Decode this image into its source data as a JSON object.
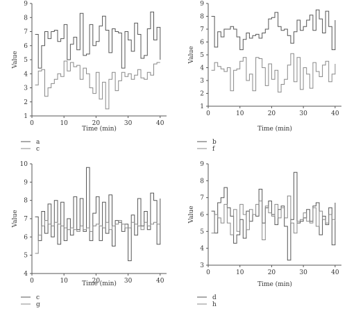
{
  "chart_data": [
    {
      "type": "line",
      "xlabel": "Time (min)",
      "ylabel": "Value",
      "xlim": [
        0,
        42
      ],
      "ylim": [
        1,
        9
      ],
      "xticks": [
        "0",
        "10",
        "20",
        "30",
        "40"
      ],
      "yticks": [
        "1",
        "2",
        "3",
        "4",
        "5",
        "6",
        "7",
        "8",
        "9"
      ],
      "series": [
        {
          "name": "a",
          "color": "#555555",
          "x": [
            1,
            2,
            3,
            4,
            5,
            6,
            7,
            8,
            9,
            10,
            11,
            12,
            13,
            14,
            15,
            16,
            17,
            18,
            19,
            20,
            21,
            22,
            23,
            24,
            25,
            26,
            27,
            28,
            29,
            30,
            31,
            32,
            33,
            34,
            35,
            36,
            37,
            38,
            39,
            40
          ],
          "values": [
            6.8,
            4.4,
            6.0,
            7.0,
            6.5,
            7.0,
            7.1,
            6.3,
            6.5,
            7.5,
            5.0,
            6.1,
            6.6,
            5.7,
            8.3,
            5.3,
            5.4,
            7.5,
            6.0,
            6.3,
            7.4,
            8.1,
            7.1,
            5.5,
            7.2,
            7.0,
            6.9,
            4.4,
            7.0,
            6.4,
            5.6,
            7.6,
            6.8,
            5.1,
            5.3,
            7.2,
            8.4,
            6.4,
            7.3,
            5.0
          ]
        },
        {
          "name": "c",
          "color": "#888888",
          "x": [
            1,
            2,
            3,
            4,
            5,
            6,
            7,
            8,
            9,
            10,
            11,
            12,
            13,
            14,
            15,
            16,
            17,
            18,
            19,
            20,
            21,
            22,
            23,
            24,
            25,
            26,
            27,
            28,
            29,
            30,
            31,
            32,
            33,
            34,
            35,
            36,
            37,
            38,
            39,
            40
          ],
          "values": [
            3.2,
            4.2,
            4.3,
            2.4,
            3.0,
            3.3,
            3.6,
            4.0,
            3.8,
            4.9,
            4.2,
            4.8,
            4.5,
            4.6,
            3.6,
            4.4,
            4.0,
            3.0,
            2.6,
            4.1,
            2.2,
            3.4,
            1.5,
            3.6,
            4.1,
            2.8,
            3.5,
            4.1,
            3.8,
            4.0,
            3.6,
            3.9,
            4.3,
            3.7,
            3.6,
            4.1,
            3.9,
            4.7,
            4.8,
            4.8
          ]
        }
      ]
    },
    {
      "type": "line",
      "xlabel": "Time (min)",
      "ylabel": "Value",
      "xlim": [
        0,
        42
      ],
      "ylim": [
        1,
        9
      ],
      "xticks": [
        "0",
        "10",
        "20",
        "30",
        "40"
      ],
      "yticks": [
        "1",
        "2",
        "3",
        "4",
        "5",
        "6",
        "7",
        "8",
        "9"
      ],
      "series": [
        {
          "name": "b",
          "color": "#555555",
          "x": [
            1,
            2,
            3,
            4,
            5,
            6,
            7,
            8,
            9,
            10,
            11,
            12,
            13,
            14,
            15,
            16,
            17,
            18,
            19,
            20,
            21,
            22,
            23,
            24,
            25,
            26,
            27,
            28,
            29,
            30,
            31,
            32,
            33,
            34,
            35,
            36,
            37,
            38,
            39,
            40
          ],
          "values": [
            8.0,
            5.6,
            6.8,
            6.4,
            7.0,
            7.0,
            7.2,
            7.0,
            6.4,
            5.4,
            6.2,
            6.7,
            6.3,
            6.5,
            6.6,
            6.3,
            6.7,
            7.0,
            7.8,
            7.9,
            8.3,
            7.2,
            6.9,
            7.0,
            6.5,
            5.9,
            6.8,
            7.7,
            6.9,
            7.2,
            7.7,
            8.1,
            6.9,
            8.5,
            7.8,
            6.7,
            8.4,
            7.2,
            5.4,
            7.7
          ]
        },
        {
          "name": "f",
          "color": "#888888",
          "x": [
            1,
            2,
            3,
            4,
            5,
            6,
            7,
            8,
            9,
            10,
            11,
            12,
            13,
            14,
            15,
            16,
            17,
            18,
            19,
            20,
            21,
            22,
            23,
            24,
            25,
            26,
            27,
            28,
            29,
            30,
            31,
            32,
            33,
            34,
            35,
            36,
            37,
            38,
            39,
            40
          ],
          "values": [
            3.8,
            4.4,
            4.1,
            3.9,
            3.7,
            4.0,
            2.2,
            3.8,
            3.9,
            4.5,
            4.8,
            3.0,
            3.5,
            2.2,
            4.8,
            4.7,
            4.0,
            2.6,
            4.3,
            3.1,
            3.8,
            2.1,
            2.7,
            3.1,
            4.2,
            5.1,
            2.9,
            4.8,
            2.3,
            4.0,
            3.5,
            2.4,
            4.4,
            3.7,
            3.3,
            4.2,
            4.5,
            2.9,
            3.5,
            4.3
          ]
        }
      ]
    },
    {
      "type": "line",
      "xlabel": "Time (min)",
      "ylabel": "Value",
      "xlim": [
        0,
        42
      ],
      "ylim": [
        4,
        10
      ],
      "xticks": [
        "0",
        "10",
        "20",
        "30",
        "40"
      ],
      "yticks": [
        "4",
        "5",
        "6",
        "7",
        "8",
        "9",
        "10"
      ],
      "series": [
        {
          "name": "c",
          "color": "#555555",
          "x": [
            1,
            2,
            3,
            4,
            5,
            6,
            7,
            8,
            9,
            10,
            11,
            12,
            13,
            14,
            15,
            16,
            17,
            18,
            19,
            20,
            21,
            22,
            23,
            24,
            25,
            26,
            27,
            28,
            29,
            30,
            31,
            32,
            33,
            34,
            35,
            36,
            37,
            38,
            39,
            40
          ],
          "values": [
            7.1,
            5.8,
            7.4,
            6.2,
            7.8,
            6.0,
            8.0,
            5.6,
            7.9,
            5.8,
            7.0,
            6.1,
            8.2,
            6.4,
            8.1,
            6.3,
            9.8,
            5.8,
            7.3,
            8.2,
            5.8,
            7.9,
            6.2,
            8.3,
            5.5,
            6.9,
            6.8,
            6.3,
            6.7,
            4.7,
            7.2,
            6.1,
            8.1,
            6.6,
            7.4,
            6.4,
            8.4,
            8.0,
            5.6,
            8.1
          ]
        },
        {
          "name": "g",
          "color": "#888888",
          "x": [
            1,
            2,
            3,
            4,
            5,
            6,
            7,
            8,
            9,
            10,
            11,
            12,
            13,
            14,
            15,
            16,
            17,
            18,
            19,
            20,
            21,
            22,
            23,
            24,
            25,
            26,
            27,
            28,
            29,
            30,
            31,
            32,
            33,
            34,
            35,
            36,
            37,
            38,
            39,
            40
          ],
          "values": [
            5.1,
            6.1,
            6.6,
            6.9,
            6.7,
            6.6,
            6.8,
            6.7,
            6.6,
            6.5,
            6.4,
            6.5,
            6.4,
            6.3,
            6.6,
            6.4,
            6.5,
            6.3,
            6.6,
            6.7,
            6.6,
            6.5,
            6.8,
            6.4,
            6.6,
            6.7,
            6.9,
            6.7,
            6.5,
            6.5,
            6.8,
            6.7,
            6.6,
            6.4,
            6.8,
            6.6,
            6.7,
            6.8,
            6.7,
            6.9
          ]
        }
      ]
    },
    {
      "type": "line",
      "xlabel": "Time (min)",
      "ylabel": "Value",
      "xlim": [
        0,
        42
      ],
      "ylim": [
        3,
        9
      ],
      "xticks": [
        "0",
        "10",
        "20",
        "30",
        "40"
      ],
      "yticks": [
        "3",
        "4",
        "5",
        "6",
        "7",
        "8",
        "9"
      ],
      "series": [
        {
          "name": "d",
          "color": "#555555",
          "x": [
            1,
            2,
            3,
            4,
            5,
            6,
            7,
            8,
            9,
            10,
            11,
            12,
            13,
            14,
            15,
            16,
            17,
            18,
            19,
            20,
            21,
            22,
            23,
            24,
            25,
            26,
            27,
            28,
            29,
            30,
            31,
            32,
            33,
            34,
            35,
            36,
            37,
            38,
            39,
            40
          ],
          "values": [
            6.2,
            4.9,
            6.7,
            7.0,
            7.6,
            6.4,
            5.9,
            4.3,
            4.8,
            5.7,
            4.6,
            6.2,
            5.6,
            6.0,
            5.9,
            7.5,
            5.5,
            6.4,
            6.8,
            6.0,
            5.4,
            6.3,
            6.5,
            5.3,
            3.3,
            5.7,
            8.5,
            5.5,
            5.6,
            5.8,
            6.3,
            5.6,
            6.5,
            6.7,
            4.8,
            5.9,
            5.4,
            6.4,
            4.2,
            6.7
          ]
        },
        {
          "name": "h",
          "color": "#888888",
          "x": [
            1,
            2,
            3,
            4,
            5,
            6,
            7,
            8,
            9,
            10,
            11,
            12,
            13,
            14,
            15,
            16,
            17,
            18,
            19,
            20,
            21,
            22,
            23,
            24,
            25,
            26,
            27,
            28,
            29,
            30,
            31,
            32,
            33,
            34,
            35,
            36,
            37,
            38,
            39,
            40
          ],
          "values": [
            4.9,
            6.0,
            5.8,
            5.5,
            6.6,
            5.5,
            4.8,
            6.3,
            5.0,
            6.6,
            6.0,
            5.1,
            6.3,
            6.0,
            6.6,
            6.8,
            4.5,
            6.5,
            6.1,
            5.9,
            6.6,
            5.8,
            6.4,
            5.8,
            7.1,
            5.5,
            4.9,
            5.6,
            5.7,
            6.1,
            5.6,
            5.5,
            6.4,
            5.3,
            6.2,
            5.7,
            5.5,
            6.0,
            5.7,
            5.6
          ]
        }
      ]
    }
  ]
}
